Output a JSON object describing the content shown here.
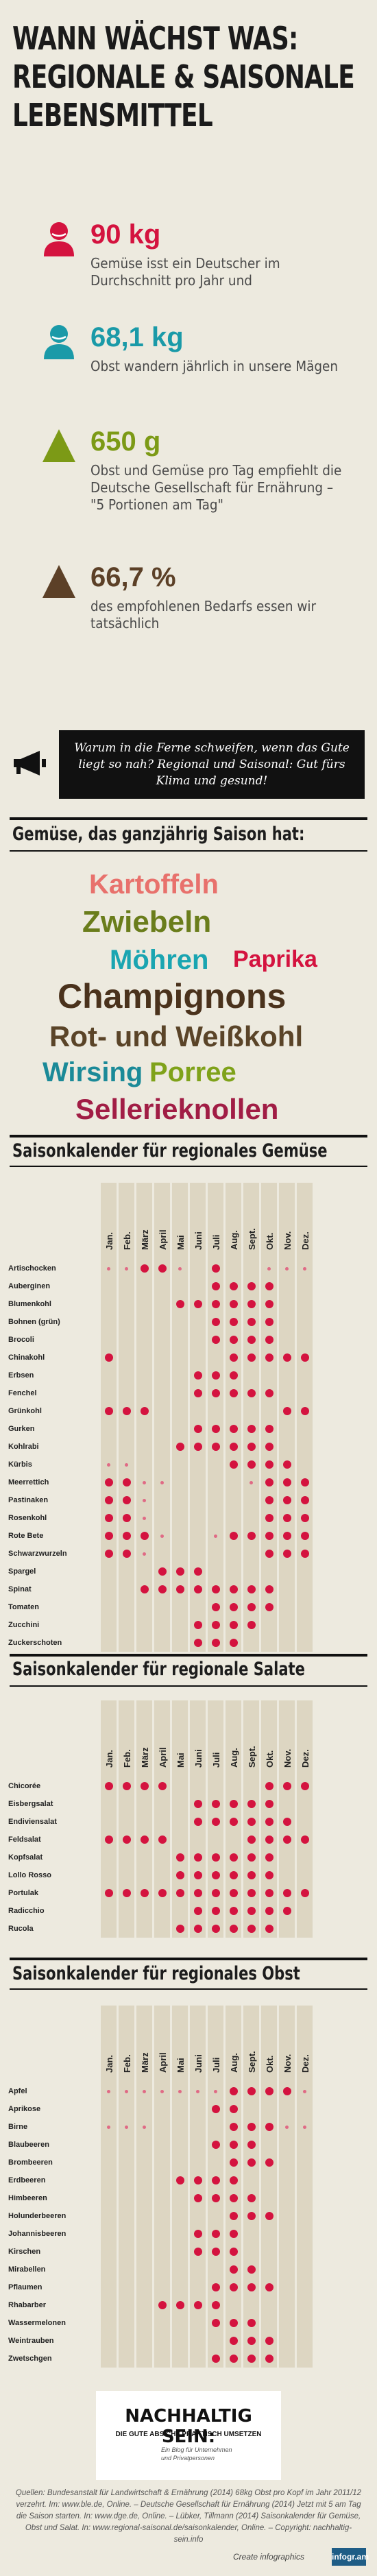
{
  "title_lines": [
    "Wann wächst was:",
    "Regionale & Saisonale",
    "Lebensmittel"
  ],
  "stats": [
    {
      "value": "90 kg",
      "text": "Gemüse isst ein Deutscher im Durchschnitt pro Jahr und",
      "color": "#d4133f",
      "icon": "person-icon"
    },
    {
      "value": "68,1 kg",
      "text": "Obst wandern jährlich in unsere Mägen",
      "color": "#1a9aa8",
      "icon": "person-icon"
    },
    {
      "value": "650 g",
      "text": "Obst und Gemüse pro Tag empfiehlt die Deutsche Gesellschaft für Ernährung – \"5 Portionen am Tag\"",
      "color": "#7c9a16",
      "icon": "triangle-icon"
    },
    {
      "value": "66,7 %",
      "text": "des empfohlenen Bedarfs essen wir tatsächlich",
      "color": "#5c4027",
      "icon": "triangle-icon"
    }
  ],
  "quote": "Warum in die Ferne schweifen, wenn das Gute liegt so nah? Regional und Saisonal: Gut fürs Klima und gesund!",
  "year_round_title": "Gemüse, das ganzjährig Saison hat:",
  "year_round": [
    {
      "text": "Kartoffeln",
      "color": "#e8716c"
    },
    {
      "text": "Zwiebeln",
      "color": "#6a7d1b"
    },
    {
      "text": "Möhren",
      "color": "#1aa5b1"
    },
    {
      "text": "Paprika",
      "color": "#d4133f"
    },
    {
      "text": "Champignons",
      "color": "#4a321c"
    },
    {
      "text": "Rot- und Weißkohl",
      "color": "#5a4428"
    },
    {
      "text": "Wirsing",
      "color": "#1b8a98"
    },
    {
      "text": "Porree",
      "color": "#7fa21a"
    },
    {
      "text": "Sellerieknollen",
      "color": "#a11d45"
    }
  ],
  "months": [
    "Jan.",
    "Feb.",
    "März",
    "April",
    "Mai",
    "Juni",
    "Juli",
    "Aug.",
    "Sept.",
    "Okt.",
    "Nov.",
    "Dez."
  ],
  "veg_title": "Saisonkalender für regionales Gemüse",
  "veg": [
    {
      "name": "Artischocken",
      "m": [
        1,
        1,
        2,
        2,
        1,
        0,
        2,
        0,
        0,
        1,
        1,
        1
      ]
    },
    {
      "name": "Auberginen",
      "m": [
        0,
        0,
        0,
        0,
        0,
        0,
        2,
        2,
        2,
        2,
        0,
        0
      ]
    },
    {
      "name": "Blumenkohl",
      "m": [
        0,
        0,
        0,
        0,
        2,
        2,
        2,
        2,
        2,
        2,
        0,
        0
      ]
    },
    {
      "name": "Bohnen (grün)",
      "m": [
        0,
        0,
        0,
        0,
        0,
        0,
        2,
        2,
        2,
        2,
        0,
        0
      ]
    },
    {
      "name": "Brocoli",
      "m": [
        0,
        0,
        0,
        0,
        0,
        0,
        2,
        2,
        2,
        2,
        0,
        0
      ]
    },
    {
      "name": "Chinakohl",
      "m": [
        2,
        0,
        0,
        0,
        0,
        0,
        0,
        2,
        2,
        2,
        2,
        2
      ]
    },
    {
      "name": "Erbsen",
      "m": [
        0,
        0,
        0,
        0,
        0,
        2,
        2,
        2,
        0,
        0,
        0,
        0
      ]
    },
    {
      "name": "Fenchel",
      "m": [
        0,
        0,
        0,
        0,
        0,
        2,
        2,
        2,
        2,
        2,
        0,
        0
      ]
    },
    {
      "name": "Grünkohl",
      "m": [
        2,
        2,
        2,
        0,
        0,
        0,
        0,
        0,
        0,
        0,
        2,
        2
      ]
    },
    {
      "name": "Gurken",
      "m": [
        0,
        0,
        0,
        0,
        0,
        2,
        2,
        2,
        2,
        2,
        0,
        0
      ]
    },
    {
      "name": "Kohlrabi",
      "m": [
        0,
        0,
        0,
        0,
        2,
        2,
        2,
        2,
        2,
        2,
        0,
        0
      ]
    },
    {
      "name": "Kürbis",
      "m": [
        1,
        1,
        0,
        0,
        0,
        0,
        0,
        2,
        2,
        2,
        2,
        0
      ]
    },
    {
      "name": "Meerrettich",
      "m": [
        2,
        2,
        1,
        1,
        0,
        0,
        0,
        0,
        1,
        2,
        2,
        2
      ]
    },
    {
      "name": "Pastinaken",
      "m": [
        2,
        2,
        1,
        0,
        0,
        0,
        0,
        0,
        0,
        2,
        2,
        2
      ]
    },
    {
      "name": "Rosenkohl",
      "m": [
        2,
        2,
        1,
        0,
        0,
        0,
        0,
        0,
        0,
        2,
        2,
        2
      ]
    },
    {
      "name": "Rote Bete",
      "m": [
        2,
        2,
        2,
        1,
        0,
        0,
        1,
        2,
        2,
        2,
        2,
        2
      ]
    },
    {
      "name": "Schwarzwurzeln",
      "m": [
        2,
        2,
        1,
        0,
        0,
        0,
        0,
        0,
        0,
        2,
        2,
        2
      ]
    },
    {
      "name": "Spargel",
      "m": [
        0,
        0,
        0,
        2,
        2,
        2,
        0,
        0,
        0,
        0,
        0,
        0
      ]
    },
    {
      "name": "Spinat",
      "m": [
        0,
        0,
        2,
        2,
        2,
        2,
        2,
        2,
        2,
        2,
        0,
        0
      ]
    },
    {
      "name": "Tomaten",
      "m": [
        0,
        0,
        0,
        0,
        0,
        0,
        2,
        2,
        2,
        2,
        0,
        0
      ]
    },
    {
      "name": "Zucchini",
      "m": [
        0,
        0,
        0,
        0,
        0,
        2,
        2,
        2,
        2,
        0,
        0,
        0
      ]
    },
    {
      "name": "Zuckerschoten",
      "m": [
        0,
        0,
        0,
        0,
        0,
        2,
        2,
        2,
        0,
        0,
        0,
        0
      ]
    }
  ],
  "salad_title": "Saisonkalender für regionale Salate",
  "salad": [
    {
      "name": "Chicorée",
      "m": [
        2,
        2,
        2,
        2,
        0,
        0,
        0,
        0,
        0,
        2,
        2,
        2
      ]
    },
    {
      "name": "Eisbergsalat",
      "m": [
        0,
        0,
        0,
        0,
        0,
        2,
        2,
        2,
        2,
        2,
        0,
        0
      ]
    },
    {
      "name": "Endiviensalat",
      "m": [
        0,
        0,
        0,
        0,
        0,
        2,
        2,
        2,
        2,
        2,
        2,
        0
      ]
    },
    {
      "name": "Feldsalat",
      "m": [
        2,
        2,
        2,
        2,
        0,
        0,
        0,
        0,
        2,
        2,
        2,
        2
      ]
    },
    {
      "name": "Kopfsalat",
      "m": [
        0,
        0,
        0,
        0,
        2,
        2,
        2,
        2,
        2,
        2,
        0,
        0
      ]
    },
    {
      "name": "Lollo Rosso",
      "m": [
        0,
        0,
        0,
        0,
        2,
        2,
        2,
        2,
        2,
        2,
        0,
        0
      ]
    },
    {
      "name": "Portulak",
      "m": [
        2,
        2,
        2,
        2,
        2,
        2,
        2,
        2,
        2,
        2,
        2,
        2
      ]
    },
    {
      "name": "Radicchio",
      "m": [
        0,
        0,
        0,
        0,
        0,
        2,
        2,
        2,
        2,
        2,
        2,
        0
      ]
    },
    {
      "name": "Rucola",
      "m": [
        0,
        0,
        0,
        0,
        2,
        2,
        2,
        2,
        2,
        2,
        0,
        0
      ]
    }
  ],
  "fruit_title": "Saisonkalender für regionales Obst",
  "fruit": [
    {
      "name": "Apfel",
      "m": [
        1,
        1,
        1,
        1,
        1,
        1,
        1,
        2,
        2,
        2,
        2,
        1
      ]
    },
    {
      "name": "Aprikose",
      "m": [
        0,
        0,
        0,
        0,
        0,
        0,
        2,
        2,
        0,
        0,
        0,
        0
      ]
    },
    {
      "name": "Birne",
      "m": [
        1,
        1,
        1,
        0,
        0,
        0,
        0,
        2,
        2,
        2,
        1,
        1
      ]
    },
    {
      "name": "Blaubeeren",
      "m": [
        0,
        0,
        0,
        0,
        0,
        0,
        2,
        2,
        2,
        0,
        0,
        0
      ]
    },
    {
      "name": "Brombeeren",
      "m": [
        0,
        0,
        0,
        0,
        0,
        0,
        0,
        2,
        2,
        2,
        0,
        0
      ]
    },
    {
      "name": "Erdbeeren",
      "m": [
        0,
        0,
        0,
        0,
        2,
        2,
        2,
        2,
        0,
        0,
        0,
        0
      ]
    },
    {
      "name": "Himbeeren",
      "m": [
        0,
        0,
        0,
        0,
        0,
        2,
        2,
        2,
        2,
        0,
        0,
        0
      ]
    },
    {
      "name": "Holunderbeeren",
      "m": [
        0,
        0,
        0,
        0,
        0,
        0,
        0,
        2,
        2,
        2,
        0,
        0
      ]
    },
    {
      "name": "Johannisbeeren",
      "m": [
        0,
        0,
        0,
        0,
        0,
        2,
        2,
        2,
        0,
        0,
        0,
        0
      ]
    },
    {
      "name": "Kirschen",
      "m": [
        0,
        0,
        0,
        0,
        0,
        2,
        2,
        2,
        0,
        0,
        0,
        0
      ]
    },
    {
      "name": "Mirabellen",
      "m": [
        0,
        0,
        0,
        0,
        0,
        0,
        0,
        2,
        2,
        0,
        0,
        0
      ]
    },
    {
      "name": "Pflaumen",
      "m": [
        0,
        0,
        0,
        0,
        0,
        0,
        2,
        2,
        2,
        2,
        0,
        0
      ]
    },
    {
      "name": "Rhabarber",
      "m": [
        0,
        0,
        0,
        2,
        2,
        2,
        2,
        0,
        0,
        0,
        0,
        0
      ]
    },
    {
      "name": "Wassermelonen",
      "m": [
        0,
        0,
        0,
        0,
        0,
        0,
        2,
        2,
        2,
        0,
        0,
        0
      ]
    },
    {
      "name": "Weintrauben",
      "m": [
        0,
        0,
        0,
        0,
        0,
        0,
        0,
        2,
        2,
        2,
        0,
        0
      ]
    },
    {
      "name": "Zwetschgen",
      "m": [
        0,
        0,
        0,
        0,
        0,
        0,
        2,
        2,
        2,
        2,
        0,
        0
      ]
    }
  ],
  "footer": {
    "logo_title": "NACHHALTIG SEIN:",
    "logo_sub": "DIE GUTE ABSICHT PRAKTISCH UMSETZEN",
    "logo_tag": "Ein Blog für Unternehmen und Privatpersonen",
    "sources": "Quellen: Bundesanstalt für Landwirtschaft & Ernährung (2014) 68kg Obst pro Kopf im Jahr 2011/12 verzehrt. Im: www.ble.de, Online. – Deutsche Gesellschaft für Ernährung (2014) Jetzt mit 5 am Tag die Saison starten. In: www.dge.de, Online. – Lübker, Tillmann (2014) Saisonkalender für Gemüse, Obst und Salat. In: www.regional-saisonal.de/saisonkalender, Online. – Copyright: nachhaltig-sein.info",
    "credit": "Create infographics",
    "badge": "infogr.am"
  }
}
